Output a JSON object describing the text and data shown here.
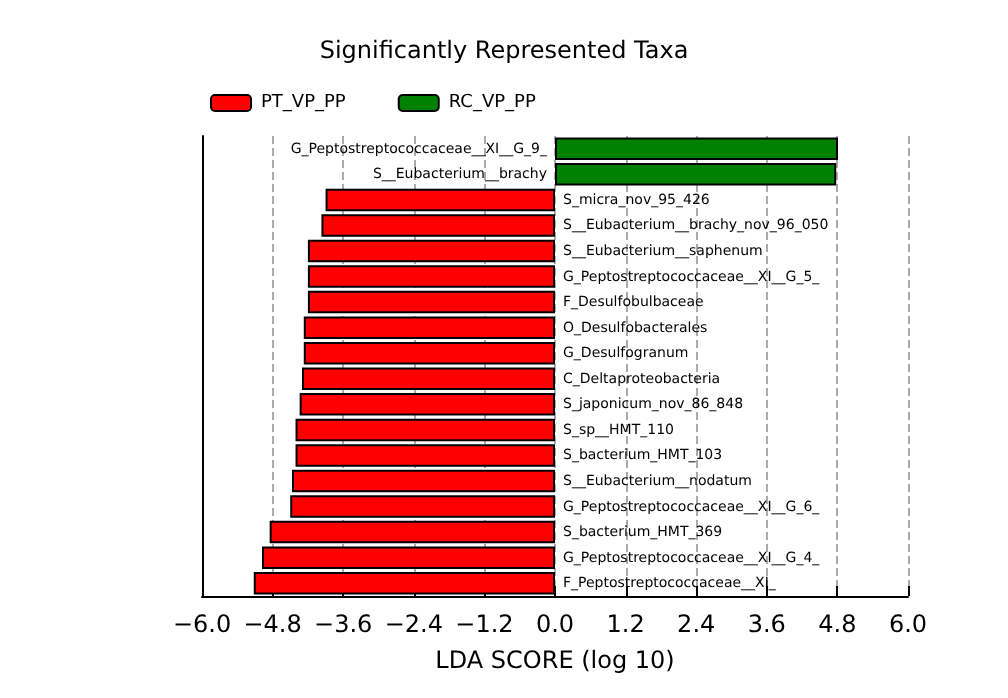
{
  "chart_data": {
    "type": "bar",
    "orientation": "horizontal",
    "title": "Significantly Represented Taxa",
    "xlabel": "LDA SCORE (log 10)",
    "categories": [
      "G_Peptostreptococcaceae__XI__G_9_",
      "S__Eubacterium__brachy",
      "S_micra_nov_95_426",
      "S__Eubacterium__brachy_nov_96_050",
      "S__Eubacterium__saphenum",
      "G_Peptostreptococcaceae__XI__G_5_",
      "F_Desulfobulbaceae",
      "O_Desulfobacterales",
      "G_Desulfogranum",
      "C_Deltaproteobacteria",
      "S_japonicum_nov_86_848",
      "S_sp__HMT_110",
      "S_bacterium_HMT_103",
      "S__Eubacterium__nodatum",
      "G_Peptostreptococcaceae__XI__G_6_",
      "S_bacterium_HMT_369",
      "G_Peptostreptococcaceae__XI__G_4_",
      "F_Peptostreptococcaceae__XI_"
    ],
    "series": [
      {
        "name": "PT_VP_PP",
        "color": "#ff0000",
        "values": [
          null,
          null,
          -3.9,
          -3.97,
          -4.2,
          -4.2,
          -4.2,
          -4.27,
          -4.27,
          -4.3,
          -4.34,
          -4.41,
          -4.41,
          -4.47,
          -4.5,
          -4.85,
          -4.98,
          -5.12
        ]
      },
      {
        "name": "RC_VP_PP",
        "color": "#008000",
        "values": [
          4.81,
          4.78,
          null,
          null,
          null,
          null,
          null,
          null,
          null,
          null,
          null,
          null,
          null,
          null,
          null,
          null,
          null,
          null
        ]
      }
    ],
    "xlim": [
      -6,
      6
    ],
    "xticks": [
      {
        "value": -6,
        "label": "−6.0"
      },
      {
        "value": -4.8,
        "label": "−4.8"
      },
      {
        "value": -3.6,
        "label": "−3.6"
      },
      {
        "value": -2.4,
        "label": "−2.4"
      },
      {
        "value": -1.2,
        "label": "−1.2"
      },
      {
        "value": 0,
        "label": "0.0"
      },
      1.2,
      2.4,
      3.6,
      4.8,
      {
        "value": 6,
        "label": "6.0"
      }
    ],
    "grid": "x",
    "legend": "top left",
    "tick_labels": "x"
  }
}
